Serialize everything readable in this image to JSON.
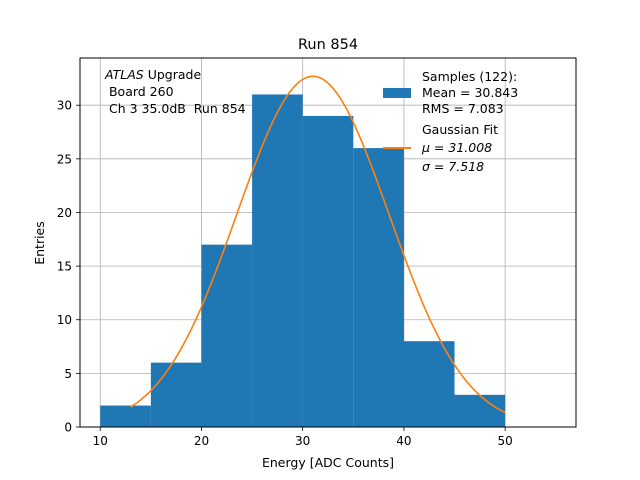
{
  "chart_data": {
    "type": "bar",
    "title": "Run 854",
    "xlabel": "Energy [ADC Counts]",
    "ylabel": "Entries",
    "xlim": [
      8,
      57
    ],
    "ylim": [
      0,
      34.4
    ],
    "xticks": [
      10,
      20,
      30,
      40,
      50
    ],
    "yticks": [
      0,
      5,
      10,
      15,
      20,
      25,
      30
    ],
    "grid": true,
    "bins": [
      {
        "x0": 10,
        "x1": 15,
        "count": 2
      },
      {
        "x0": 15,
        "x1": 20,
        "count": 6
      },
      {
        "x0": 20,
        "x1": 25,
        "count": 17
      },
      {
        "x0": 25,
        "x1": 30,
        "count": 31
      },
      {
        "x0": 30,
        "x1": 35,
        "count": 29
      },
      {
        "x0": 35,
        "x1": 40,
        "count": 26
      },
      {
        "x0": 40,
        "x1": 45,
        "count": 8
      },
      {
        "x0": 45,
        "x1": 50,
        "count": 3
      }
    ],
    "fit": {
      "type": "gaussian",
      "mu": 31.008,
      "sigma": 7.518,
      "amplitude": 32.7,
      "x_range": [
        13,
        50
      ]
    },
    "colors": {
      "bars": "#1f77b4",
      "fit": "#ff7f0e",
      "grid": "#b0b0b0"
    },
    "annotation": {
      "line1_italic": "ATLAS",
      "line1_rest": " Upgrade",
      "line2": " Board 260",
      "line3": " Ch 3 35.0dB  Run 854"
    },
    "legend": {
      "placement": "top-right",
      "samples_title": "Samples (122):",
      "samples_mean": "Mean = 30.843",
      "samples_rms": "RMS = 7.083",
      "fit_title": "Gaussian Fit",
      "fit_mu": "μ = 31.008",
      "fit_sigma": "σ = 7.518"
    }
  }
}
